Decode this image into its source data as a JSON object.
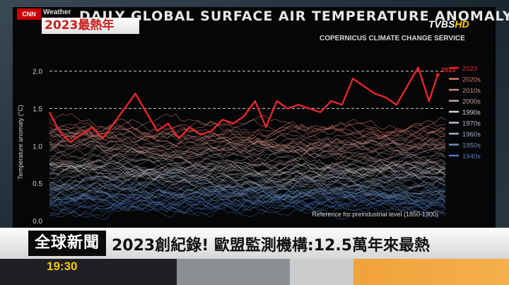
{
  "overlay": {
    "network_logo": "CNN",
    "network_sub": "Weather",
    "tag": "2023最熱年",
    "channel_logo": "TVBS",
    "channel_hd": "HD",
    "ticker_label": "全球新聞",
    "ticker_headline": "2023創紀錄! 歐盟監測機構:12.5萬年來最熱",
    "clock": "19:30"
  },
  "chart_data": {
    "type": "line",
    "title": "DAILY GLOBAL SURFACE AIR TEMPERATURE ANOMALY",
    "subtitle": "COPERNICUS CLIMATE CHANGE SERVICE",
    "ylabel": "Temperature anomaly (°C)",
    "ylim": [
      0,
      2.1
    ],
    "yticks": [
      "0.0",
      "0.5",
      "1.0",
      "1.5",
      "2.0"
    ],
    "reference_lines": [
      1.5,
      2.0
    ],
    "annotation": "Reference for preindustrial level (1850-1900)",
    "legend_position": "right",
    "legend": [
      {
        "label": "2023",
        "color": "#e8262b"
      },
      {
        "label": "2020s",
        "color": "#d77a6e"
      },
      {
        "label": "2010s",
        "color": "#c88b84"
      },
      {
        "label": "2000s",
        "color": "#c7a49f"
      },
      {
        "label": "1990s",
        "color": "#d9d0d0"
      },
      {
        "label": "1970s",
        "color": "#b8bcc6"
      },
      {
        "label": "1960s",
        "color": "#9fb0c4"
      },
      {
        "label": "1950s",
        "color": "#6f8fbf"
      },
      {
        "label": "1940s",
        "color": "#4f7ac2"
      }
    ],
    "series": [
      {
        "name": "2023",
        "color": "#e8262b",
        "x": [
          1,
          10,
          20,
          30,
          40,
          50,
          60,
          70,
          80,
          90,
          100,
          110,
          120,
          130,
          140,
          150,
          160,
          170,
          180,
          190,
          200,
          210,
          220,
          230,
          240,
          250,
          260,
          270,
          280,
          290,
          300,
          310,
          320,
          330,
          340,
          350,
          358
        ],
        "values": [
          1.45,
          1.2,
          1.05,
          1.15,
          1.25,
          1.1,
          1.3,
          1.5,
          1.7,
          1.45,
          1.2,
          1.3,
          1.1,
          1.25,
          1.15,
          1.2,
          1.35,
          1.3,
          1.4,
          1.6,
          1.25,
          1.6,
          1.5,
          1.55,
          1.5,
          1.45,
          1.6,
          1.55,
          1.9,
          1.8,
          1.7,
          1.65,
          1.55,
          1.8,
          2.05,
          1.6,
          1.95
        ]
      }
    ]
  }
}
